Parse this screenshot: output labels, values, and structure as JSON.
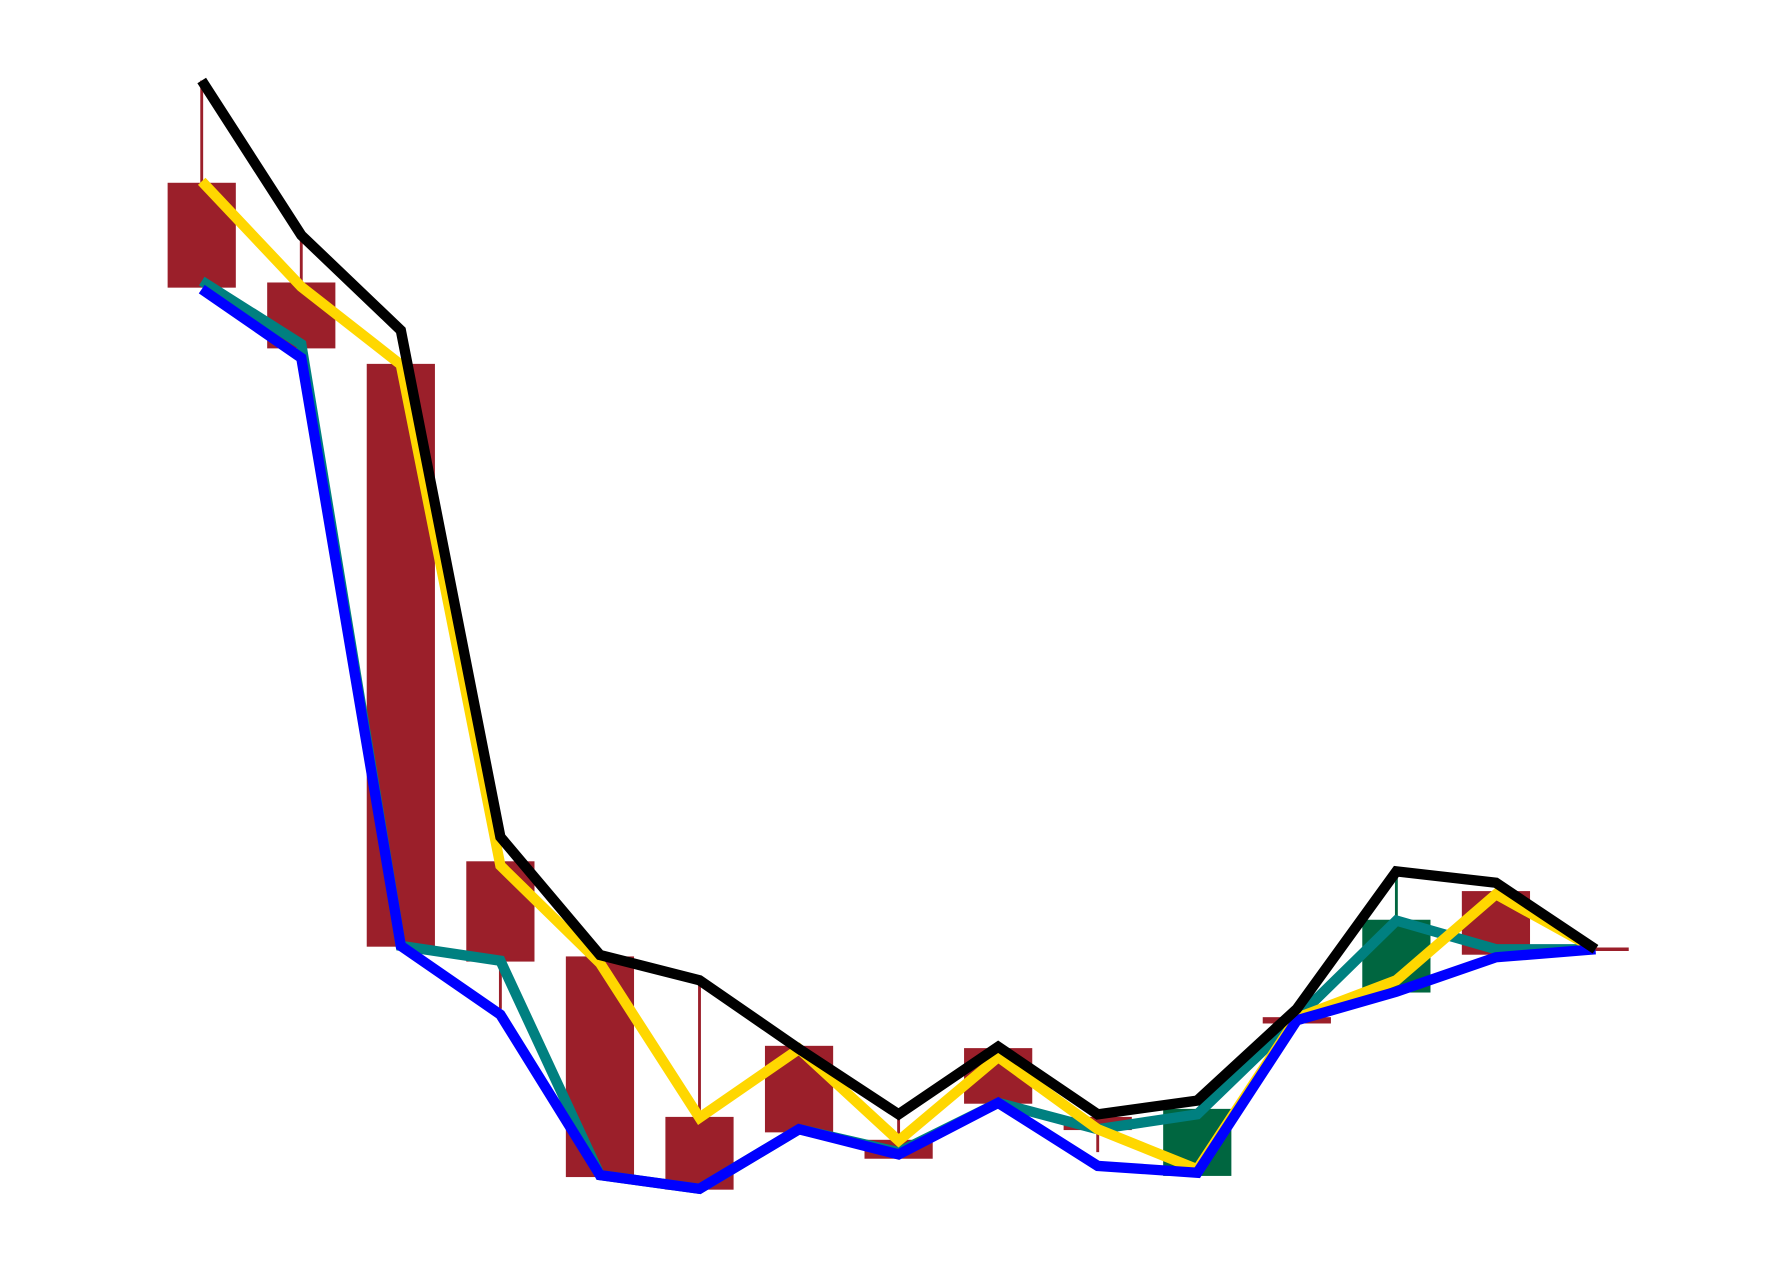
{
  "chart_data": {
    "type": "candlestick",
    "categories": [
      null,
      null,
      null,
      null,
      null,
      null,
      null,
      null,
      null,
      null,
      null,
      null,
      null,
      null,
      null
    ],
    "open": [
      94,
      85.3,
      78.2,
      34.8,
      26.5,
      12.5,
      18.7,
      10.5,
      18.5,
      12.5,
      7.5,
      21.2,
      23.5,
      32.2,
      27.2
    ],
    "high": [
      103,
      89,
      78.2,
      34.8,
      26.5,
      24.5,
      18.7,
      12.5,
      18.5,
      12.5,
      13.2,
      21.2,
      33.8,
      32.2,
      27.2
    ],
    "low": [
      85,
      79.7,
      27.5,
      22,
      7.4,
      6.3,
      11.3,
      9,
      13.8,
      9.5,
      7.5,
      20.8,
      23.5,
      26.8,
      27.2
    ],
    "close": [
      85,
      79.7,
      27.5,
      26.2,
      7.4,
      6.3,
      11.3,
      9,
      13.8,
      11.5,
      13.2,
      20.8,
      29.7,
      26.8,
      27.2
    ],
    "up_color": "#006640",
    "down_color": "#9b1f2a",
    "ylim": [
      0,
      110
    ],
    "series": [
      {
        "color": "#008080",
        "values": [
          85.5,
          80,
          27.5,
          26.2,
          7.5,
          6.3,
          11.5,
          9.5,
          13.8,
          11.5,
          12.8,
          21.2,
          29.7,
          27.2,
          27.2
        ]
      },
      {
        "color": "#ffd700",
        "values": [
          94.2,
          85,
          78.2,
          34.5,
          26,
          12.5,
          18.5,
          10.5,
          17.8,
          11.5,
          8,
          21.2,
          24.5,
          32,
          27.2
        ]
      },
      {
        "color": "#0000ff",
        "values": [
          84.8,
          78.8,
          27.5,
          21.5,
          7.5,
          6.3,
          11.5,
          9.3,
          13.8,
          8.3,
          7.7,
          21,
          23.5,
          26.5,
          27.2
        ]
      },
      {
        "color": "#000000",
        "values": [
          103,
          89.5,
          81.2,
          37,
          26.7,
          24.5,
          18.5,
          12.8,
          18.7,
          12.8,
          14,
          22,
          34,
          33,
          27.2
        ]
      }
    ]
  }
}
